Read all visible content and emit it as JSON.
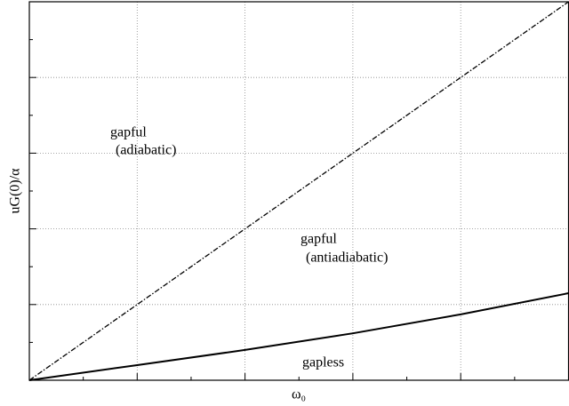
{
  "chart_data": {
    "type": "line",
    "x_label": "ω₀",
    "y_label": "uG(0)/α",
    "x": [
      0,
      1,
      2,
      3,
      4,
      5
    ],
    "series": [
      {
        "color": "#000000",
        "style": "dashdot",
        "values": [
          0,
          1,
          2,
          3,
          4,
          5
        ]
      },
      {
        "color": "#000000",
        "style": "solid",
        "values": [
          0,
          0.2,
          0.4,
          0.62,
          0.87,
          1.15
        ]
      }
    ],
    "xlim": [
      0,
      5
    ],
    "ylim": [
      0,
      5
    ],
    "xticks": [
      0,
      1,
      2,
      3,
      4,
      5
    ],
    "yticks": [
      0,
      1,
      2,
      3,
      4,
      5
    ],
    "grid": true,
    "annotations": [
      "gapful",
      "(adiabatic)",
      "gapful",
      "(antiadiabatic)",
      "gapless"
    ]
  }
}
